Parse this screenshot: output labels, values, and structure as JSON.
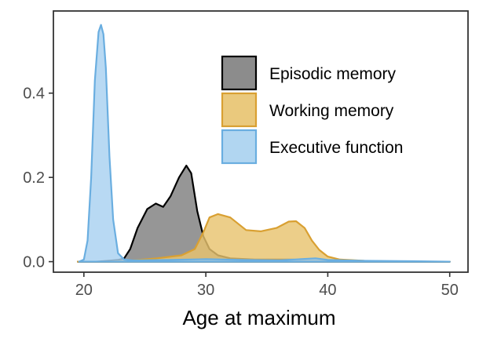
{
  "chart_data": {
    "type": "area",
    "title": "",
    "xlabel": "Age at maximum",
    "ylabel": "",
    "xlim": [
      17.5,
      51.5
    ],
    "ylim": [
      -0.025,
      0.595
    ],
    "x_ticks": [
      20,
      30,
      40,
      50
    ],
    "y_ticks": [
      0.0,
      0.2,
      0.4
    ],
    "y_tick_labels": [
      "0.0",
      "0.2",
      "0.4"
    ],
    "grid": false,
    "legend_position": "top-right",
    "series": [
      {
        "name": "Episodic memory",
        "fill": "#7f7f7f",
        "stroke": "#000000",
        "points": [
          [
            19.5,
            0
          ],
          [
            21,
            0
          ],
          [
            22,
            0.002
          ],
          [
            22.8,
            0.004
          ],
          [
            23.3,
            0.008
          ],
          [
            23.8,
            0.03
          ],
          [
            24.4,
            0.08
          ],
          [
            25.2,
            0.125
          ],
          [
            25.9,
            0.138
          ],
          [
            26.5,
            0.13
          ],
          [
            27.1,
            0.155
          ],
          [
            27.8,
            0.2
          ],
          [
            28.4,
            0.228
          ],
          [
            28.8,
            0.21
          ],
          [
            29.3,
            0.12
          ],
          [
            29.8,
            0.06
          ],
          [
            30.3,
            0.03
          ],
          [
            31,
            0.015
          ],
          [
            32,
            0.008
          ],
          [
            34,
            0.005
          ],
          [
            37,
            0.005
          ],
          [
            40,
            0.003
          ],
          [
            43,
            0.001
          ],
          [
            46,
            0
          ],
          [
            50,
            0
          ]
        ]
      },
      {
        "name": "Working memory",
        "fill": "#e8c36f",
        "stroke": "#d9a032",
        "points": [
          [
            19.5,
            0
          ],
          [
            22,
            0
          ],
          [
            24,
            0.003
          ],
          [
            26,
            0.008
          ],
          [
            28,
            0.015
          ],
          [
            29.1,
            0.03
          ],
          [
            29.8,
            0.07
          ],
          [
            30.3,
            0.105
          ],
          [
            31,
            0.113
          ],
          [
            32,
            0.105
          ],
          [
            33.3,
            0.075
          ],
          [
            34.5,
            0.072
          ],
          [
            35.8,
            0.08
          ],
          [
            36.8,
            0.095
          ],
          [
            37.4,
            0.096
          ],
          [
            38.1,
            0.08
          ],
          [
            38.7,
            0.05
          ],
          [
            39.3,
            0.028
          ],
          [
            40,
            0.012
          ],
          [
            41,
            0.005
          ],
          [
            43,
            0.002
          ],
          [
            46,
            0
          ],
          [
            50,
            0
          ]
        ]
      },
      {
        "name": "Executive function",
        "fill": "#a8d1f0",
        "stroke": "#6aaee0",
        "points": [
          [
            19.6,
            0
          ],
          [
            20.0,
            0.005
          ],
          [
            20.3,
            0.05
          ],
          [
            20.6,
            0.2
          ],
          [
            20.9,
            0.43
          ],
          [
            21.2,
            0.545
          ],
          [
            21.4,
            0.562
          ],
          [
            21.6,
            0.54
          ],
          [
            21.8,
            0.46
          ],
          [
            22.1,
            0.25
          ],
          [
            22.4,
            0.1
          ],
          [
            22.8,
            0.02
          ],
          [
            23.3,
            0.005
          ],
          [
            24,
            0.003
          ],
          [
            27,
            0.004
          ],
          [
            30,
            0.006
          ],
          [
            33,
            0.004
          ],
          [
            36,
            0.003
          ],
          [
            39,
            0.008
          ],
          [
            40,
            0.004
          ],
          [
            43,
            0.002
          ],
          [
            47,
            0.001
          ],
          [
            50,
            0
          ]
        ]
      }
    ]
  }
}
